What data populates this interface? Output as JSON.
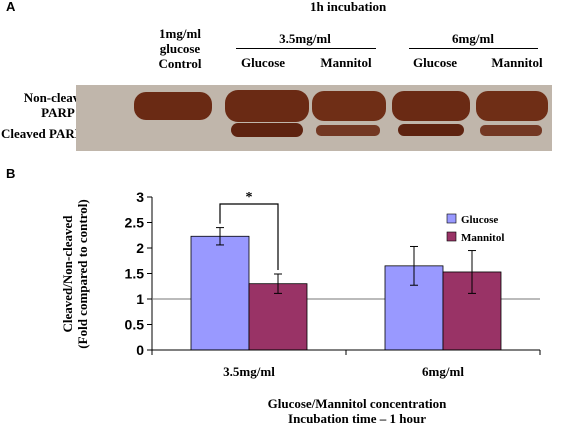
{
  "panel_a": {
    "letter": "A",
    "header": "1h incubation",
    "control_label_lines": [
      "1mg/ml",
      "glucose",
      "Control"
    ],
    "group_1": "3.5mg/ml",
    "group_2": "6mg/ml",
    "lane_labels": [
      "Glucose",
      "Mannitol",
      "Glucose",
      "Mannitol"
    ],
    "band_labels": {
      "non_cleaved_lines": [
        "Non-cleaved",
        "PARP"
      ],
      "cleaved": "Cleaved PARP"
    },
    "colors": {
      "band": "#6a2a14",
      "blot_background": "#c7bdb3",
      "arrow": "#1f2d6e"
    }
  },
  "panel_b": {
    "letter": "B"
  },
  "chart_data": {
    "type": "bar",
    "categories": [
      "3.5mg/ml",
      "6mg/ml"
    ],
    "series": [
      {
        "name": "Glucose",
        "values": [
          2.23,
          1.65
        ],
        "errors": [
          0.17,
          0.38
        ],
        "color": "#9999ff"
      },
      {
        "name": "Mannitol",
        "values": [
          1.3,
          1.53
        ],
        "errors": [
          0.19,
          0.42
        ],
        "color": "#993366"
      }
    ],
    "ylabel_lines": [
      "Cleaved/Non-cleaved",
      "(Fold compared to control)"
    ],
    "xlabel_lines": [
      "Glucose/Mannitol concentration",
      "Incubation time – 1 hour"
    ],
    "ylim": [
      0,
      3
    ],
    "yticks": [
      "0",
      "0.5",
      "1",
      "1.5",
      "2",
      "2.5",
      "3"
    ],
    "reference_line": 1,
    "significance": {
      "label": "*",
      "between": "3.5mg/ml Glucose vs Mannitol"
    },
    "legend_position": "right",
    "grid": false
  }
}
